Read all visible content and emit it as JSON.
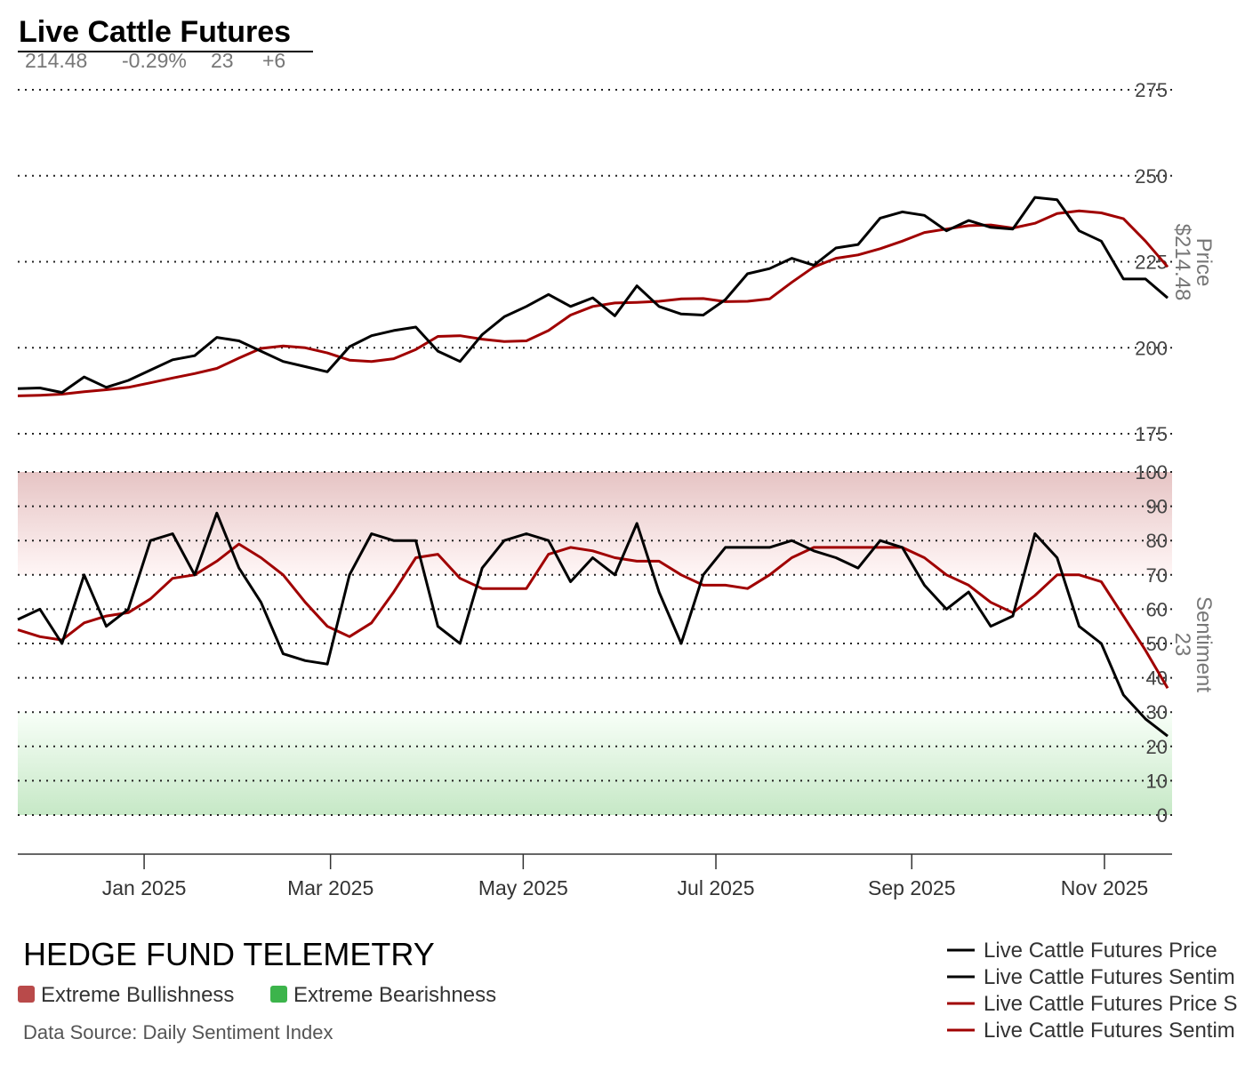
{
  "chart_data": [
    {
      "type": "line",
      "title": "Live Cattle Futures",
      "stats": [
        "214.48",
        "-0.29%",
        "23",
        "+6"
      ],
      "axis_label": "Price",
      "axis_value": "$214.48",
      "ylim": [
        175,
        275
      ],
      "yticks": [
        "275",
        "250",
        "225",
        "200",
        "175"
      ],
      "grid": true,
      "x": [
        "2024-11-22",
        "2024-11-29",
        "2024-12-06",
        "2024-12-13",
        "2024-12-20",
        "2024-12-27",
        "2025-01-03",
        "2025-01-10",
        "2025-01-17",
        "2025-01-24",
        "2025-01-31",
        "2025-02-07",
        "2025-02-14",
        "2025-02-21",
        "2025-02-28",
        "2025-03-07",
        "2025-03-14",
        "2025-03-21",
        "2025-03-28",
        "2025-04-04",
        "2025-04-11",
        "2025-04-18",
        "2025-04-25",
        "2025-05-02",
        "2025-05-09",
        "2025-05-16",
        "2025-05-23",
        "2025-05-30",
        "2025-06-06",
        "2025-06-13",
        "2025-06-20",
        "2025-06-27",
        "2025-07-04",
        "2025-07-11",
        "2025-07-18",
        "2025-07-25",
        "2025-08-01",
        "2025-08-08",
        "2025-08-15",
        "2025-08-22",
        "2025-08-29",
        "2025-09-05",
        "2025-09-12",
        "2025-09-19",
        "2025-09-26",
        "2025-10-03",
        "2025-10-10",
        "2025-10-17",
        "2025-10-24",
        "2025-10-31",
        "2025-11-07",
        "2025-11-14",
        "2025-11-21"
      ],
      "series": [
        {
          "name": "Live Cattle Futures Price",
          "color": "#000000",
          "values": [
            188.1,
            188.3,
            187,
            191.5,
            188.5,
            190.5,
            193.5,
            196.5,
            197.7,
            203,
            202,
            199,
            196,
            194.5,
            193,
            200.3,
            203.5,
            205,
            206,
            199,
            196,
            203.8,
            209,
            212,
            215.5,
            212,
            214.5,
            209.3,
            218,
            212,
            209.8,
            209.5,
            214,
            221.5,
            223,
            226,
            224,
            229,
            230,
            237.7,
            239.5,
            238.5,
            234,
            237,
            235,
            234.5,
            243.7,
            243,
            234,
            231,
            220,
            220,
            214.48
          ]
        },
        {
          "name": "Live Cattle Futures Price S",
          "color": "#a00000",
          "values": [
            186,
            186.2,
            186.5,
            187.2,
            187.8,
            188.5,
            189.8,
            191.2,
            192.5,
            194,
            197,
            199.8,
            200.5,
            200,
            198.5,
            196.4,
            196,
            196.8,
            199.5,
            203.3,
            203.5,
            202.5,
            201.8,
            202,
            205,
            209.5,
            212,
            213,
            213.2,
            213.5,
            214.2,
            214.3,
            213.4,
            213.5,
            214.2,
            219,
            223.5,
            226,
            227,
            228.8,
            231,
            233.5,
            234.5,
            235.5,
            235.7,
            234.8,
            236.2,
            239,
            239.8,
            239.2,
            237.5,
            231,
            223.5
          ]
        }
      ]
    },
    {
      "type": "line",
      "axis_label": "Sentiment",
      "axis_value": "23",
      "ylim": [
        0,
        100
      ],
      "yticks": [
        "100",
        "90",
        "80",
        "70",
        "60",
        "50",
        "40",
        "30",
        "20",
        "10",
        "0"
      ],
      "grid": true,
      "bands": [
        {
          "label": "Extreme Bullishness",
          "range": [
            70,
            100
          ],
          "color": "#b94a4a"
        },
        {
          "label": "Extreme Bearishness",
          "range": [
            0,
            30
          ],
          "color": "#3cb44b"
        }
      ],
      "xticks": [
        "Jan 2025",
        "Mar 2025",
        "May 2025",
        "Jul 2025",
        "Sep 2025",
        "Nov 2025"
      ],
      "xtick_dates": [
        "2025-01-01",
        "2025-03-01",
        "2025-05-01",
        "2025-07-01",
        "2025-09-01",
        "2025-11-01"
      ],
      "series": [
        {
          "name": "Live Cattle Futures Sentim",
          "color": "#000000",
          "values": [
            57,
            60,
            50,
            70,
            55,
            60,
            80,
            82,
            70,
            88,
            72,
            62,
            47,
            45,
            44,
            70,
            82,
            80,
            80,
            55,
            50,
            72,
            80,
            82,
            80,
            68,
            75,
            70,
            85,
            65,
            50,
            70,
            78,
            78,
            78,
            80,
            77,
            75,
            72,
            80,
            78,
            67,
            60,
            65,
            55,
            58,
            82,
            75,
            55,
            50,
            35,
            28,
            23
          ]
        },
        {
          "name": "Live Cattle Futures Sentim",
          "color": "#a00000",
          "values": [
            54,
            52,
            51,
            56,
            58,
            59,
            63,
            69,
            70,
            74,
            79,
            75,
            70,
            62,
            55,
            52,
            56,
            65,
            75,
            76,
            69,
            66,
            66,
            66,
            76,
            78,
            77,
            75,
            74,
            74,
            70,
            67,
            67,
            66,
            70,
            75,
            78,
            78,
            78,
            78,
            78,
            75,
            70,
            67,
            62,
            59,
            64,
            70,
            70,
            68,
            58,
            48,
            37
          ]
        }
      ]
    }
  ],
  "footer": {
    "brand": "HEDGE FUND TELEMETRY",
    "band_legend": [
      {
        "label": "Extreme Bullishness",
        "color": "#b94a4a"
      },
      {
        "label": "Extreme Bearishness",
        "color": "#3cb44b"
      }
    ],
    "source": "Data Source: Daily Sentiment Index"
  },
  "legend": [
    {
      "label": "Live Cattle Futures Price",
      "color": "#000000"
    },
    {
      "label": "Live Cattle Futures Sentim",
      "color": "#000000"
    },
    {
      "label": "Live Cattle Futures Price S",
      "color": "#a00000"
    },
    {
      "label": "Live Cattle Futures Sentim",
      "color": "#a00000"
    }
  ]
}
